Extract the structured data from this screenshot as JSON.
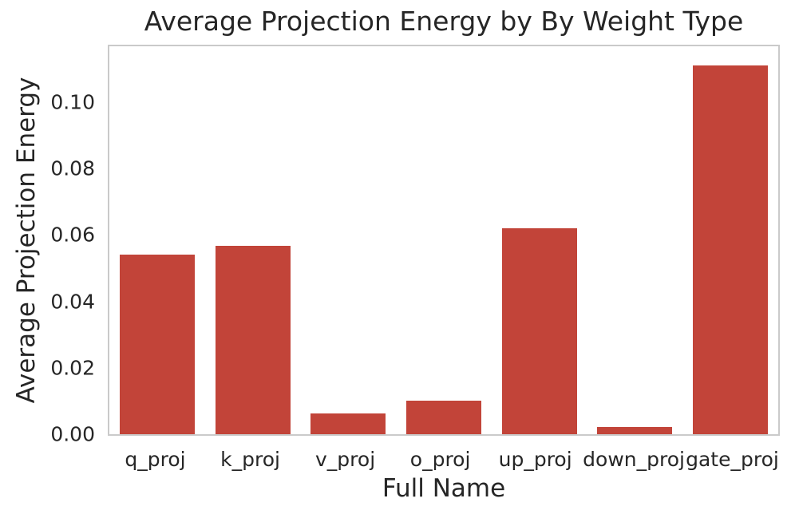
{
  "chart_data": {
    "type": "bar",
    "title": "Average Projection Energy by By Weight Type",
    "xlabel": "Full Name",
    "ylabel": "Average Projection Energy",
    "categories": [
      "q_proj",
      "k_proj",
      "v_proj",
      "o_proj",
      "up_proj",
      "down_proj",
      "gate_proj"
    ],
    "values": [
      0.0542,
      0.0568,
      0.0062,
      0.01,
      0.0619,
      0.0021,
      0.111
    ],
    "yticks": [
      0.0,
      0.02,
      0.04,
      0.06,
      0.08,
      0.1
    ],
    "ytick_labels": [
      "0.00",
      "0.02",
      "0.04",
      "0.06",
      "0.08",
      "0.10"
    ],
    "ylim": [
      0,
      0.1168
    ],
    "grid": false,
    "legend_position": "none",
    "colors": {
      "bar": "#c24439",
      "spine": "#cacaca",
      "text": "#262626",
      "figure_background": "#ffffff",
      "axes_background": "#ffffff"
    }
  }
}
